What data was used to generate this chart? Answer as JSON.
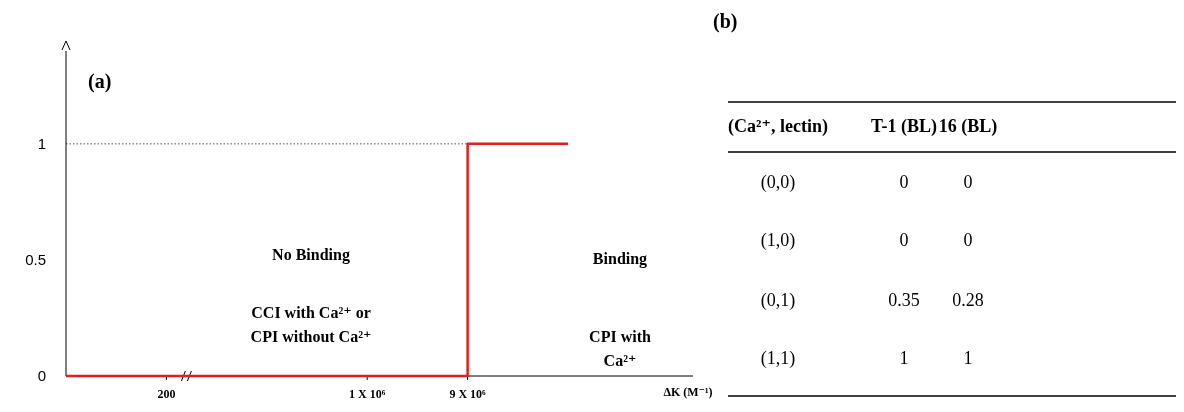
{
  "chart_data": [
    {
      "type": "step",
      "title": "(a)",
      "xlabel": "ΔK (M⁻¹)",
      "categories": [
        null,
        "200",
        null,
        "1 X 10⁶",
        "9 X 10⁶",
        null
      ],
      "series": [
        {
          "color": "#e0201c",
          "values": [
            0,
            0,
            0,
            0,
            1,
            1
          ]
        }
      ],
      "ylim": [
        0,
        1.4
      ],
      "yticks": [
        0,
        0.5,
        1
      ],
      "grid": false,
      "ref_lines": [
        {
          "axis": "y",
          "value": 1,
          "line_style": "dotted",
          "color": "#555555"
        }
      ],
      "annotations": [
        "No Binding",
        "Binding",
        "CCI with Ca²⁺ or\nCPI without Ca²⁺",
        "CPI with\nCa²⁺"
      ]
    },
    {
      "type": "heatmap",
      "title": "(b)",
      "data_labels": true,
      "ylabel": "(Ca²⁺, lectin)",
      "categories": [
        "T-1 (BL)",
        "16 (BL)"
      ],
      "y_categories": [
        "(0,0)",
        "(1,0)",
        "(0,1)",
        "(1,1)"
      ],
      "cells": [
        [
          0,
          0
        ],
        [
          0,
          0
        ],
        [
          0.35,
          0.28
        ],
        [
          1,
          1
        ]
      ]
    }
  ]
}
